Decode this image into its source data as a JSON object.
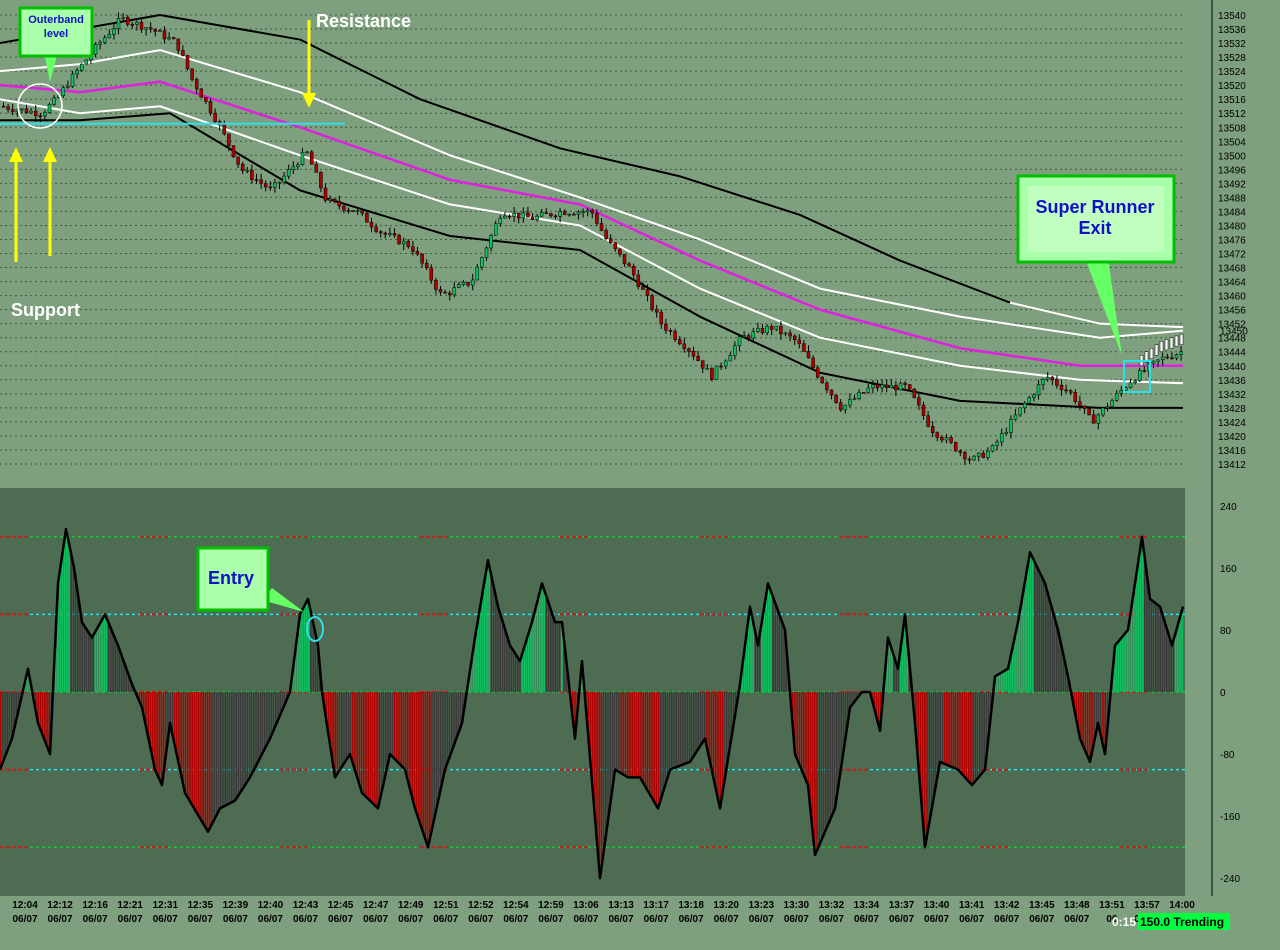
{
  "chart_data": [
    {
      "type": "candlestick",
      "panel": "price",
      "yticks": [
        13540,
        13536,
        13532,
        13528,
        13524,
        13520,
        13516,
        13512,
        13508,
        13504,
        13500,
        13496,
        13492,
        13488,
        13484,
        13480,
        13476,
        13472,
        13468,
        13464,
        13460,
        13456,
        13452,
        13448,
        13444,
        13440,
        13436,
        13432,
        13428,
        13424,
        13420,
        13416,
        13412
      ],
      "last_price_label": "13450",
      "ylim": [
        13408,
        13542
      ],
      "grid": true,
      "close_path": [
        [
          0,
          13514
        ],
        [
          18,
          13513
        ],
        [
          40,
          13512
        ],
        [
          55,
          13516
        ],
        [
          70,
          13522
        ],
        [
          95,
          13531
        ],
        [
          120,
          13539
        ],
        [
          150,
          13536
        ],
        [
          175,
          13532
        ],
        [
          190,
          13522
        ],
        [
          215,
          13510
        ],
        [
          240,
          13496
        ],
        [
          270,
          13490
        ],
        [
          305,
          13501
        ],
        [
          325,
          13487
        ],
        [
          355,
          13484
        ],
        [
          380,
          13478
        ],
        [
          410,
          13474
        ],
        [
          440,
          13460
        ],
        [
          470,
          13464
        ],
        [
          500,
          13484
        ],
        [
          530,
          13482
        ],
        [
          560,
          13484
        ],
        [
          590,
          13484
        ],
        [
          605,
          13476
        ],
        [
          630,
          13467
        ],
        [
          660,
          13452
        ],
        [
          690,
          13444
        ],
        [
          710,
          13437
        ],
        [
          740,
          13448
        ],
        [
          770,
          13451
        ],
        [
          795,
          13447
        ],
        [
          815,
          13438
        ],
        [
          840,
          13428
        ],
        [
          870,
          13434
        ],
        [
          905,
          13434
        ],
        [
          930,
          13422
        ],
        [
          970,
          13413
        ],
        [
          990,
          13416
        ],
        [
          1020,
          13428
        ],
        [
          1045,
          13437
        ],
        [
          1070,
          13432
        ],
        [
          1090,
          13424
        ],
        [
          1110,
          13430
        ],
        [
          1130,
          13436
        ],
        [
          1160,
          13442
        ],
        [
          1180,
          13444
        ]
      ],
      "bands": {
        "outer_upper": [
          [
            0,
            13532
          ],
          [
            60,
            13535
          ],
          [
            160,
            13540
          ],
          [
            300,
            13533
          ],
          [
            420,
            13516
          ],
          [
            560,
            13502
          ],
          [
            680,
            13494
          ],
          [
            800,
            13483
          ],
          [
            900,
            13470
          ],
          [
            1010,
            13458
          ]
        ],
        "inner_upper": [
          [
            0,
            13524
          ],
          [
            80,
            13526
          ],
          [
            160,
            13530
          ],
          [
            300,
            13518
          ],
          [
            450,
            13500
          ],
          [
            580,
            13488
          ],
          [
            700,
            13476
          ],
          [
            820,
            13462
          ],
          [
            960,
            13454
          ],
          [
            1100,
            13448
          ],
          [
            1183,
            13450
          ]
        ],
        "mid": [
          [
            0,
            13520
          ],
          [
            80,
            13518
          ],
          [
            160,
            13521
          ],
          [
            300,
            13508
          ],
          [
            450,
            13493
          ],
          [
            580,
            13486
          ],
          [
            700,
            13470
          ],
          [
            820,
            13456
          ],
          [
            960,
            13445
          ],
          [
            1080,
            13440
          ],
          [
            1183,
            13440
          ]
        ],
        "inner_lower": [
          [
            0,
            13516
          ],
          [
            80,
            13512
          ],
          [
            160,
            13514
          ],
          [
            300,
            13500
          ],
          [
            450,
            13486
          ],
          [
            580,
            13480
          ],
          [
            700,
            13462
          ],
          [
            820,
            13448
          ],
          [
            960,
            13440
          ],
          [
            1080,
            13436
          ],
          [
            1183,
            13435
          ]
        ],
        "outer_lower": [
          [
            0,
            13510
          ],
          [
            80,
            13510
          ],
          [
            170,
            13512
          ],
          [
            300,
            13490
          ],
          [
            450,
            13477
          ],
          [
            580,
            13473
          ],
          [
            700,
            13454
          ],
          [
            820,
            13438
          ],
          [
            960,
            13430
          ],
          [
            1100,
            13428
          ],
          [
            1183,
            13428
          ]
        ]
      },
      "support_line": 13509,
      "annotations": [
        "Resistance",
        "Support",
        "Outerband level",
        "Super Runner Exit"
      ]
    },
    {
      "type": "histogram",
      "panel": "oscillator",
      "yticks": [
        240,
        160,
        80,
        0,
        -80,
        -160,
        -240
      ],
      "ylim": [
        -250,
        250
      ],
      "reference_levels": [
        200,
        100,
        0,
        -100,
        -200
      ],
      "oscillator_path": [
        [
          0,
          -100
        ],
        [
          12,
          -60
        ],
        [
          28,
          30
        ],
        [
          38,
          -40
        ],
        [
          50,
          -80
        ],
        [
          58,
          140
        ],
        [
          66,
          210
        ],
        [
          74,
          160
        ],
        [
          82,
          90
        ],
        [
          92,
          70
        ],
        [
          105,
          100
        ],
        [
          118,
          60
        ],
        [
          132,
          10
        ],
        [
          142,
          -20
        ],
        [
          155,
          -100
        ],
        [
          162,
          -120
        ],
        [
          170,
          -40
        ],
        [
          185,
          -130
        ],
        [
          208,
          -180
        ],
        [
          220,
          -150
        ],
        [
          235,
          -140
        ],
        [
          250,
          -110
        ],
        [
          270,
          -60
        ],
        [
          290,
          0
        ],
        [
          300,
          100
        ],
        [
          308,
          120
        ],
        [
          318,
          60
        ],
        [
          322,
          0
        ],
        [
          335,
          -110
        ],
        [
          350,
          -80
        ],
        [
          362,
          -130
        ],
        [
          378,
          -150
        ],
        [
          390,
          -80
        ],
        [
          405,
          -100
        ],
        [
          415,
          -150
        ],
        [
          428,
          -200
        ],
        [
          445,
          -100
        ],
        [
          462,
          -40
        ],
        [
          475,
          70
        ],
        [
          488,
          170
        ],
        [
          498,
          110
        ],
        [
          510,
          60
        ],
        [
          520,
          40
        ],
        [
          532,
          90
        ],
        [
          542,
          140
        ],
        [
          555,
          90
        ],
        [
          562,
          90
        ],
        [
          575,
          -60
        ],
        [
          582,
          40
        ],
        [
          600,
          -240
        ],
        [
          615,
          -100
        ],
        [
          628,
          -110
        ],
        [
          640,
          -110
        ],
        [
          658,
          -150
        ],
        [
          670,
          -100
        ],
        [
          690,
          -90
        ],
        [
          705,
          -60
        ],
        [
          720,
          -150
        ],
        [
          740,
          10
        ],
        [
          750,
          110
        ],
        [
          758,
          60
        ],
        [
          768,
          140
        ],
        [
          785,
          80
        ],
        [
          795,
          -80
        ],
        [
          808,
          -120
        ],
        [
          815,
          -210
        ],
        [
          835,
          -150
        ],
        [
          850,
          -20
        ],
        [
          862,
          0
        ],
        [
          870,
          0
        ],
        [
          880,
          -50
        ],
        [
          888,
          70
        ],
        [
          898,
          30
        ],
        [
          905,
          100
        ],
        [
          915,
          -40
        ],
        [
          925,
          -200
        ],
        [
          940,
          -90
        ],
        [
          958,
          -100
        ],
        [
          972,
          -120
        ],
        [
          985,
          -100
        ],
        [
          995,
          20
        ],
        [
          1008,
          30
        ],
        [
          1018,
          90
        ],
        [
          1030,
          180
        ],
        [
          1045,
          140
        ],
        [
          1058,
          80
        ],
        [
          1068,
          20
        ],
        [
          1080,
          -60
        ],
        [
          1090,
          -90
        ],
        [
          1098,
          -40
        ],
        [
          1105,
          -80
        ],
        [
          1115,
          60
        ],
        [
          1128,
          80
        ],
        [
          1142,
          200
        ],
        [
          1150,
          120
        ],
        [
          1160,
          110
        ],
        [
          1172,
          60
        ],
        [
          1183,
          110
        ]
      ],
      "annotations": [
        "Entry"
      ]
    }
  ],
  "xticks": [
    {
      "t": "12:04",
      "d": "06/07"
    },
    {
      "t": "12:12",
      "d": "06/07"
    },
    {
      "t": "12:16",
      "d": "06/07"
    },
    {
      "t": "12:21",
      "d": "06/07"
    },
    {
      "t": "12:31",
      "d": "06/07"
    },
    {
      "t": "12:35",
      "d": "06/07"
    },
    {
      "t": "12:39",
      "d": "06/07"
    },
    {
      "t": "12:40",
      "d": "06/07"
    },
    {
      "t": "12:43",
      "d": "06/07"
    },
    {
      "t": "12:45",
      "d": "06/07"
    },
    {
      "t": "12:47",
      "d": "06/07"
    },
    {
      "t": "12:49",
      "d": "06/07"
    },
    {
      "t": "12:51",
      "d": "06/07"
    },
    {
      "t": "12:52",
      "d": "06/07"
    },
    {
      "t": "12:54",
      "d": "06/07"
    },
    {
      "t": "12:59",
      "d": "06/07"
    },
    {
      "t": "13:06",
      "d": "06/07"
    },
    {
      "t": "13:13",
      "d": "06/07"
    },
    {
      "t": "13:17",
      "d": "06/07"
    },
    {
      "t": "13:18",
      "d": "06/07"
    },
    {
      "t": "13:20",
      "d": "06/07"
    },
    {
      "t": "13:23",
      "d": "06/07"
    },
    {
      "t": "13:30",
      "d": "06/07"
    },
    {
      "t": "13:32",
      "d": "06/07"
    },
    {
      "t": "13:34",
      "d": "06/07"
    },
    {
      "t": "13:37",
      "d": "06/07"
    },
    {
      "t": "13:40",
      "d": "06/07"
    },
    {
      "t": "13:41",
      "d": "06/07"
    },
    {
      "t": "13:42",
      "d": "06/07"
    },
    {
      "t": "13:45",
      "d": "06/07"
    },
    {
      "t": "13:48",
      "d": "06/07"
    },
    {
      "t": "13:51",
      "d": "06"
    },
    {
      "t": "13:57",
      "d": "06/07"
    },
    {
      "t": "14:00",
      "d": "06/07"
    }
  ],
  "labels": {
    "resistance": "Resistance",
    "support": "Support",
    "outerband_line1": "Outerband",
    "outerband_line2": "level",
    "super_runner_line1": "Super Runner",
    "super_runner_line2": "Exit",
    "entry": "Entry"
  },
  "status": {
    "time": "0:15",
    "text": "150.0 Trending"
  },
  "colors": {
    "price_bg": "#7ea07e",
    "osc_bg": "#4e6c52",
    "green": "#10c060",
    "red": "#b00000",
    "magenta": "#e020e0",
    "cyan": "#30e0e8",
    "yellow": "#ffff00"
  }
}
